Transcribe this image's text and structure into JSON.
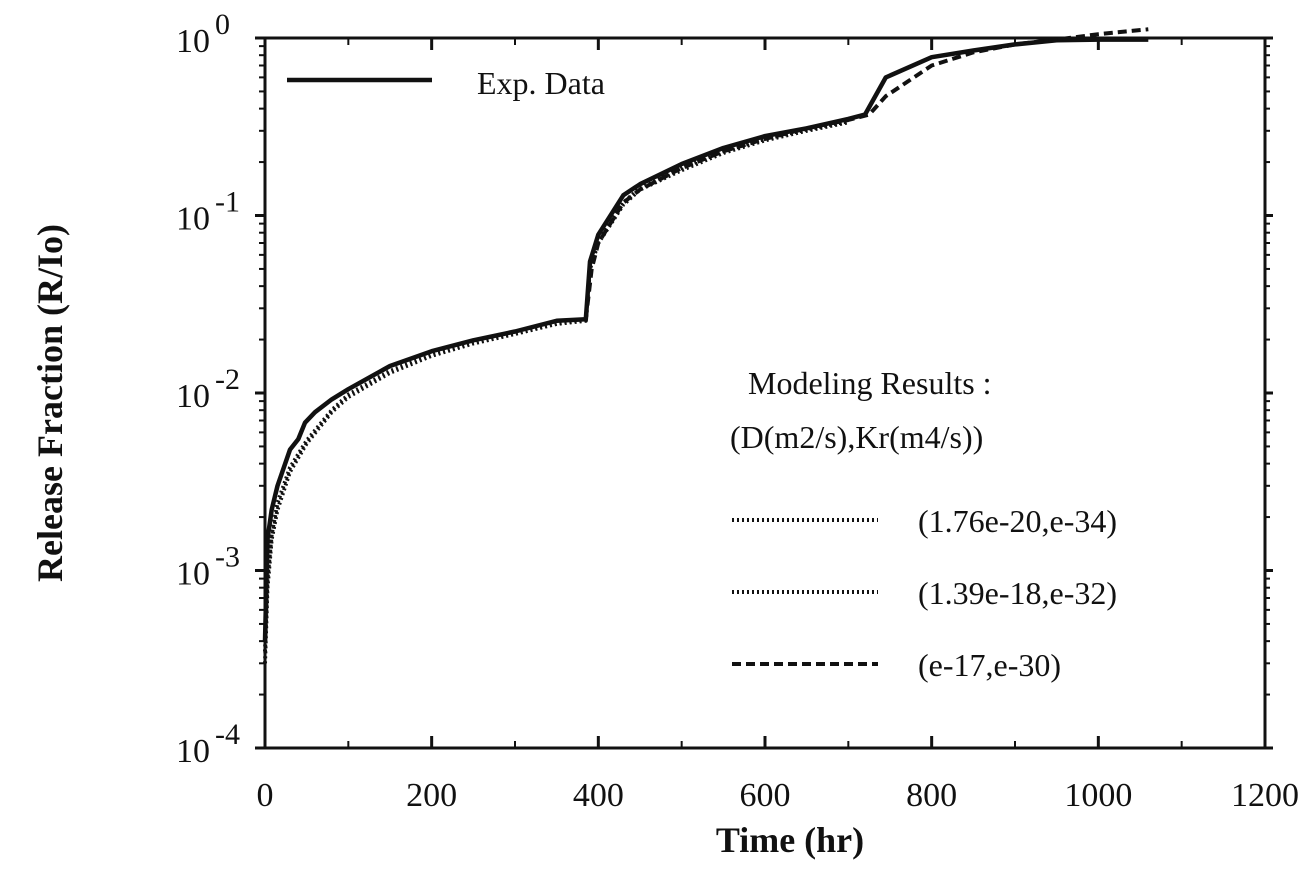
{
  "chart_data": {
    "type": "line",
    "title": "",
    "xlabel": "Time   (hr)",
    "ylabel": "Release   Fraction   (R/Io)",
    "xlim": [
      0,
      1200
    ],
    "ylim": [
      0.0001,
      1
    ],
    "yscale": "log",
    "grid": false,
    "x_ticks": [
      "0",
      "200",
      "400",
      "600",
      "800",
      "1000",
      "1200"
    ],
    "y_ticks": [
      {
        "base": "10",
        "exp": "-4",
        "value": 0.0001
      },
      {
        "base": "10",
        "exp": "-3",
        "value": 0.001
      },
      {
        "base": "10",
        "exp": "-2",
        "value": 0.01
      },
      {
        "base": "10",
        "exp": "-1",
        "value": 0.1
      },
      {
        "base": "10",
        "exp": "0",
        "value": 1
      }
    ],
    "legend": {
      "placement": "top-left and lower-right",
      "modeling_title_line1": "Modeling Results :",
      "modeling_title_line2": "(D(m2/s),Kr(m4/s))"
    },
    "series": [
      {
        "name": "Exp. Data",
        "style": "solid",
        "points": [
          [
            0,
            0.0004
          ],
          [
            3,
            0.0015
          ],
          [
            8,
            0.0022
          ],
          [
            15,
            0.003
          ],
          [
            30,
            0.0048
          ],
          [
            40,
            0.0055
          ],
          [
            48,
            0.0068
          ],
          [
            60,
            0.0078
          ],
          [
            80,
            0.0092
          ],
          [
            100,
            0.0105
          ],
          [
            150,
            0.0142
          ],
          [
            200,
            0.0172
          ],
          [
            250,
            0.0198
          ],
          [
            300,
            0.0222
          ],
          [
            350,
            0.0255
          ],
          [
            385,
            0.026
          ],
          [
            390,
            0.055
          ],
          [
            400,
            0.078
          ],
          [
            430,
            0.13
          ],
          [
            450,
            0.15
          ],
          [
            500,
            0.195
          ],
          [
            550,
            0.24
          ],
          [
            600,
            0.28
          ],
          [
            650,
            0.31
          ],
          [
            700,
            0.35
          ],
          [
            720,
            0.37
          ],
          [
            745,
            0.6
          ],
          [
            800,
            0.78
          ],
          [
            850,
            0.85
          ],
          [
            900,
            0.92
          ],
          [
            950,
            0.97
          ],
          [
            1000,
            0.98
          ],
          [
            1060,
            0.98
          ]
        ]
      },
      {
        "name": "(1.76e-20,e-34)",
        "style": "dotted",
        "points": [
          [
            0,
            0.0003
          ],
          [
            3,
            0.0008
          ],
          [
            8,
            0.0015
          ],
          [
            15,
            0.0022
          ],
          [
            30,
            0.0036
          ],
          [
            50,
            0.0052
          ],
          [
            80,
            0.0078
          ],
          [
            100,
            0.0095
          ],
          [
            150,
            0.013
          ],
          [
            200,
            0.0162
          ],
          [
            250,
            0.019
          ],
          [
            300,
            0.0215
          ],
          [
            350,
            0.0245
          ],
          [
            385,
            0.0255
          ],
          [
            390,
            0.05
          ],
          [
            400,
            0.07
          ],
          [
            430,
            0.115
          ],
          [
            450,
            0.14
          ],
          [
            500,
            0.18
          ],
          [
            550,
            0.225
          ],
          [
            600,
            0.265
          ],
          [
            650,
            0.3
          ],
          [
            700,
            0.335
          ]
        ]
      },
      {
        "name": "(1.39e-18,e-32)",
        "style": "dotted",
        "points": [
          [
            0,
            0.00035
          ],
          [
            3,
            0.0009
          ],
          [
            8,
            0.0016
          ],
          [
            15,
            0.0024
          ],
          [
            30,
            0.0038
          ],
          [
            50,
            0.0054
          ],
          [
            80,
            0.008
          ],
          [
            100,
            0.0098
          ],
          [
            150,
            0.0133
          ],
          [
            200,
            0.0165
          ],
          [
            250,
            0.0193
          ],
          [
            300,
            0.0218
          ],
          [
            350,
            0.0248
          ],
          [
            385,
            0.0258
          ],
          [
            390,
            0.052
          ],
          [
            400,
            0.072
          ],
          [
            430,
            0.118
          ],
          [
            450,
            0.143
          ],
          [
            500,
            0.185
          ],
          [
            550,
            0.23
          ],
          [
            600,
            0.27
          ],
          [
            650,
            0.305
          ],
          [
            700,
            0.34
          ]
        ]
      },
      {
        "name": "(e-17,e-30)",
        "style": "dashed",
        "points": [
          [
            385,
            0.026
          ],
          [
            392,
            0.05
          ],
          [
            400,
            0.07
          ],
          [
            430,
            0.118
          ],
          [
            450,
            0.14
          ],
          [
            500,
            0.185
          ],
          [
            550,
            0.23
          ],
          [
            600,
            0.27
          ],
          [
            650,
            0.31
          ],
          [
            700,
            0.345
          ],
          [
            725,
            0.37
          ],
          [
            745,
            0.47
          ],
          [
            800,
            0.7
          ],
          [
            850,
            0.83
          ],
          [
            900,
            0.92
          ],
          [
            950,
            0.98
          ],
          [
            1000,
            1.05
          ],
          [
            1060,
            1.12
          ]
        ]
      }
    ]
  }
}
